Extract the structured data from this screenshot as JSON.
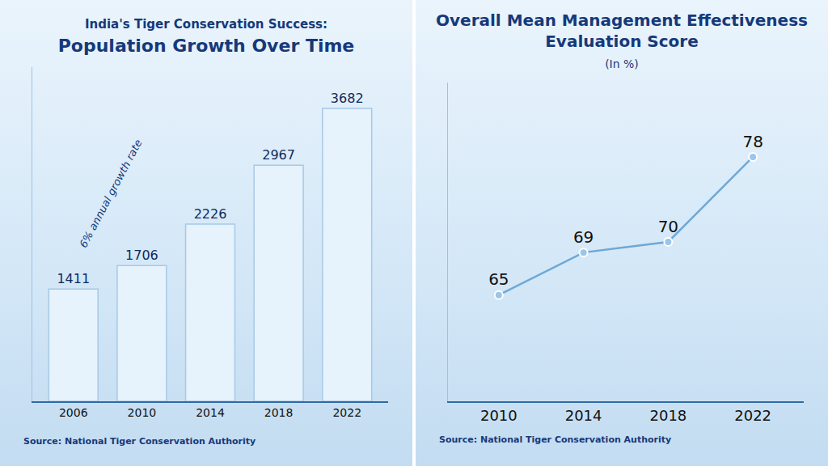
{
  "chart_data": [
    {
      "type": "bar",
      "title": "India's Tiger Conservation Success:",
      "subtitle": "Population Growth Over Time",
      "categories": [
        "2006",
        "2010",
        "2014",
        "2018",
        "2022"
      ],
      "values": [
        1411,
        1706,
        2226,
        2967,
        3682
      ],
      "color": "#e6f2fc",
      "ylim": [
        0,
        4200
      ],
      "data_labels": true,
      "tick_labels": "x",
      "grid": false,
      "annotations": [
        "6% annual growth rate"
      ],
      "source": "Source: National Tiger Conservation Authority"
    },
    {
      "type": "line",
      "title": "Overall Mean Management Effectiveness Evaluation Score",
      "subtitle": "(In %)",
      "categories": [
        "2010",
        "2014",
        "2018",
        "2022"
      ],
      "values": [
        65,
        69,
        70,
        78
      ],
      "color": "#6fa8d6",
      "marker": "circle",
      "ylim": [
        55,
        85
      ],
      "data_labels": true,
      "tick_labels": "x",
      "grid": false,
      "source": "Source: National Tiger Conservation Authority"
    }
  ]
}
